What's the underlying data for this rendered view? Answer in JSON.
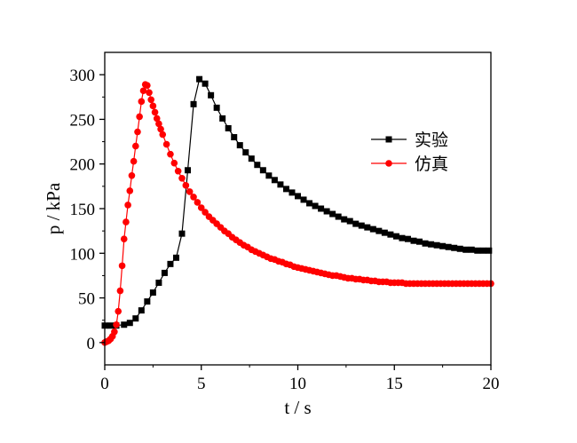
{
  "chart_data": {
    "type": "line",
    "xlabel": "t / s",
    "ylabel": "p / kPa",
    "xlim": [
      0,
      20
    ],
    "ylim": [
      -25,
      325
    ],
    "xticks": [
      0,
      5,
      10,
      15,
      20
    ],
    "yticks": [
      0,
      50,
      100,
      150,
      200,
      250,
      300
    ],
    "legend_position": "right",
    "series": [
      {
        "name": "实验",
        "color": "#000000",
        "marker": "square",
        "x": [
          0.0,
          0.3,
          0.6,
          1.0,
          1.3,
          1.6,
          1.9,
          2.2,
          2.5,
          2.8,
          3.1,
          3.4,
          3.7,
          4.0,
          4.3,
          4.6,
          4.9,
          5.2,
          5.5,
          5.8,
          6.1,
          6.4,
          6.7,
          7.0,
          7.3,
          7.6,
          7.9,
          8.2,
          8.5,
          8.8,
          9.1,
          9.4,
          9.7,
          10.0,
          10.3,
          10.6,
          10.9,
          11.2,
          11.5,
          11.8,
          12.1,
          12.4,
          12.7,
          13.0,
          13.3,
          13.6,
          13.9,
          14.2,
          14.5,
          14.8,
          15.1,
          15.4,
          15.7,
          16.0,
          16.3,
          16.6,
          16.9,
          17.2,
          17.5,
          17.8,
          18.1,
          18.4,
          18.7,
          19.0,
          19.3,
          19.6,
          19.9
        ],
        "y": [
          19,
          19,
          19,
          20,
          22,
          27,
          36,
          46,
          56,
          67,
          78,
          88,
          95,
          122,
          193,
          267,
          295,
          290,
          277,
          263,
          251,
          240,
          230,
          221,
          213,
          206,
          199,
          193,
          187,
          182,
          177,
          172,
          168,
          164,
          160,
          156,
          153,
          150,
          147,
          144,
          141,
          138,
          136,
          133,
          131,
          129,
          127,
          125,
          123,
          121,
          119,
          117,
          116,
          114,
          113,
          111,
          110,
          109,
          108,
          107,
          106,
          105,
          104,
          104,
          103,
          103,
          103
        ]
      },
      {
        "name": "仿真",
        "color": "#ff0000",
        "marker": "circle",
        "x": [
          0.0,
          0.1,
          0.2,
          0.3,
          0.4,
          0.5,
          0.6,
          0.7,
          0.8,
          0.9,
          1.0,
          1.1,
          1.2,
          1.3,
          1.4,
          1.5,
          1.6,
          1.7,
          1.8,
          1.9,
          2.0,
          2.1,
          2.2,
          2.3,
          2.4,
          2.5,
          2.6,
          2.7,
          2.8,
          2.9,
          3.0,
          3.2,
          3.4,
          3.6,
          3.8,
          4.0,
          4.2,
          4.4,
          4.6,
          4.8,
          5.0,
          5.2,
          5.4,
          5.6,
          5.8,
          6.0,
          6.2,
          6.4,
          6.6,
          6.8,
          7.0,
          7.2,
          7.4,
          7.6,
          7.8,
          8.0,
          8.2,
          8.4,
          8.6,
          8.8,
          9.0,
          9.2,
          9.4,
          9.6,
          9.8,
          10.0,
          10.2,
          10.4,
          10.6,
          10.8,
          11.0,
          11.2,
          11.4,
          11.6,
          11.8,
          12.0,
          12.2,
          12.4,
          12.6,
          12.8,
          13.0,
          13.2,
          13.4,
          13.6,
          13.8,
          14.0,
          14.2,
          14.4,
          14.6,
          14.8,
          15.0,
          15.2,
          15.4,
          15.6,
          15.8,
          16.0,
          16.2,
          16.4,
          16.6,
          16.8,
          17.0,
          17.2,
          17.4,
          17.6,
          17.8,
          18.0,
          18.2,
          18.4,
          18.6,
          18.8,
          19.0,
          19.2,
          19.4,
          19.6,
          19.8,
          20.0
        ],
        "y": [
          0,
          1,
          2,
          4,
          7,
          12,
          20,
          35,
          58,
          86,
          116,
          135,
          154,
          170,
          187,
          203,
          220,
          236,
          253,
          270,
          282,
          289,
          288,
          280,
          272,
          265,
          258,
          251,
          245,
          239,
          233,
          222,
          211,
          201,
          192,
          184,
          176,
          169,
          163,
          157,
          151,
          146,
          141,
          137,
          133,
          129,
          125,
          122,
          118,
          115,
          112,
          109,
          107,
          104,
          102,
          100,
          98,
          96,
          94,
          93,
          91,
          90,
          88,
          87,
          85,
          84,
          83,
          82,
          81,
          80,
          79,
          78,
          77,
          76,
          75,
          75,
          74,
          73,
          72,
          72,
          71,
          71,
          70,
          70,
          69,
          69,
          68,
          68,
          68,
          67,
          67,
          67,
          67,
          66,
          66,
          66,
          66,
          66,
          66,
          66,
          66,
          66,
          66,
          66,
          66,
          66,
          66,
          66,
          66,
          66,
          66,
          66,
          66,
          66,
          66,
          66
        ]
      }
    ]
  }
}
